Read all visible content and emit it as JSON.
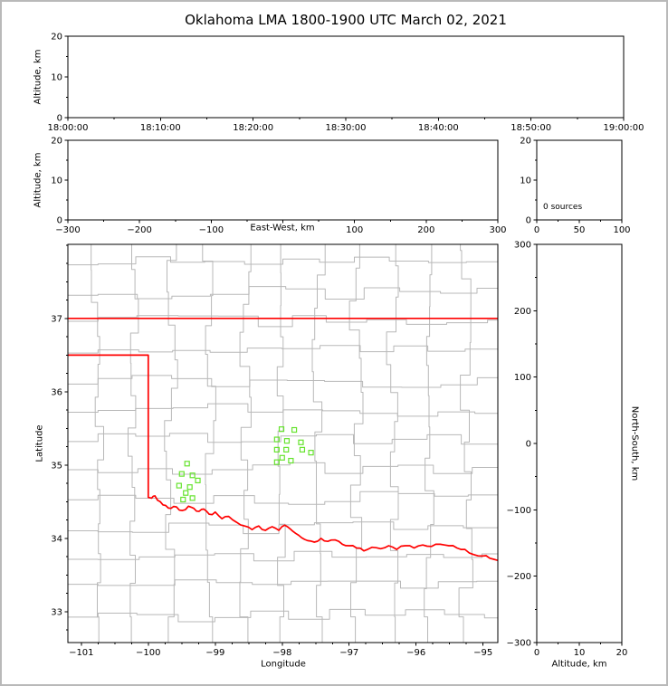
{
  "title": "Oklahoma LMA 1800-1900 UTC March 02, 2021",
  "colors": {
    "state_border": "#ff0000",
    "county_lines": "#b8b8b8",
    "source_marker": "#66e32e",
    "axis": "#000000",
    "outer_frame": "#b9b9b9"
  },
  "chart_data": [
    {
      "id": "time_height_panel",
      "type": "scatter",
      "xlabel": "",
      "ylabel": "Altitude, km",
      "xlim": [
        0,
        6
      ],
      "x_ticks": [
        0,
        1,
        2,
        3,
        4,
        5,
        6
      ],
      "x_tick_labels": [
        "18:00:00",
        "18:10:00",
        "18:20:00",
        "18:30:00",
        "18:40:00",
        "18:50:00",
        "19:00:00"
      ],
      "x_minor_ticks": [
        0.5,
        1.5,
        2.5,
        3.5,
        4.5,
        5.5
      ],
      "ylim": [
        0,
        20
      ],
      "y_ticks": [
        0,
        10,
        20
      ],
      "y_tick_labels": [
        "0",
        "10",
        "20"
      ],
      "y_minor_ticks": [
        5,
        15
      ],
      "points": []
    },
    {
      "id": "east_west_altitude_panel",
      "type": "scatter",
      "xlabel": "East-West, km",
      "ylabel": "Altitude, km",
      "xlim": [
        -300,
        300
      ],
      "x_ticks": [
        -300,
        -200,
        -100,
        0,
        100,
        200,
        300
      ],
      "x_tick_labels": [
        "−300",
        "−200",
        "−100",
        "",
        "100",
        "200",
        "300"
      ],
      "x_minor_ticks": [
        -250,
        -150,
        -50,
        50,
        150,
        250
      ],
      "ylim": [
        0,
        20
      ],
      "y_ticks": [
        0,
        10,
        20
      ],
      "y_tick_labels": [
        "0",
        "10",
        "20"
      ],
      "y_minor_ticks": [
        5,
        15
      ],
      "points": []
    },
    {
      "id": "altitude_histogram_panel",
      "type": "histogram",
      "annotation": "0 sources",
      "xlim": [
        0,
        100
      ],
      "x_ticks": [
        0,
        50,
        100
      ],
      "x_tick_labels": [
        "0",
        "50",
        "100"
      ],
      "x_minor_ticks": [
        25,
        75
      ],
      "ylim": [
        0,
        20
      ],
      "y_ticks": [
        0,
        10,
        20
      ],
      "y_tick_labels": [
        "0",
        "10",
        "20"
      ],
      "y_minor_ticks": [
        5,
        15
      ],
      "values": []
    },
    {
      "id": "plan_view_panel",
      "type": "scatter",
      "xlabel": "Longitude",
      "ylabel": "Latitude",
      "xlim": [
        -101.2,
        -94.78
      ],
      "x_ticks": [
        -101,
        -100,
        -99,
        -98,
        -97,
        -96,
        -95
      ],
      "x_tick_labels": [
        "−101",
        "−100",
        "−99",
        "−98",
        "−97",
        "−96",
        "−95"
      ],
      "x_minor_step": 0.25,
      "ylim": [
        32.58,
        38.01
      ],
      "y_ticks": [
        33,
        34,
        35,
        36,
        37
      ],
      "y_tick_labels": [
        "33",
        "34",
        "35",
        "36",
        "37"
      ],
      "y_minor_step": 0.25,
      "county_lines_color": "#b8b8b8",
      "state_border": {
        "color": "#ff0000",
        "north": [
          [
            -101.2,
            37
          ],
          [
            -94.78,
            37
          ]
        ],
        "west_and_red_river": [
          [
            -101.2,
            36.5
          ],
          [
            -100,
            36.5
          ],
          [
            -100,
            34.56
          ],
          [
            -99.95,
            34.55
          ],
          [
            -99.9,
            34.58
          ],
          [
            -99.82,
            34.5
          ],
          [
            -99.74,
            34.45
          ],
          [
            -99.66,
            34.41
          ],
          [
            -99.58,
            34.43
          ],
          [
            -99.49,
            34.38
          ],
          [
            -99.4,
            34.44
          ],
          [
            -99.32,
            34.41
          ],
          [
            -99.24,
            34.37
          ],
          [
            -99.17,
            34.4
          ],
          [
            -99.09,
            34.33
          ],
          [
            -99.0,
            34.36
          ],
          [
            -98.9,
            34.27
          ],
          [
            -98.8,
            34.3
          ],
          [
            -98.68,
            34.22
          ],
          [
            -98.56,
            34.17
          ],
          [
            -98.45,
            34.12
          ],
          [
            -98.35,
            34.17
          ],
          [
            -98.25,
            34.11
          ],
          [
            -98.15,
            34.16
          ],
          [
            -98.05,
            34.11
          ],
          [
            -97.96,
            34.18
          ],
          [
            -97.88,
            34.13
          ],
          [
            -97.8,
            34.07
          ],
          [
            -97.71,
            34.01
          ],
          [
            -97.62,
            33.97
          ],
          [
            -97.52,
            33.95
          ],
          [
            -97.42,
            34.0
          ],
          [
            -97.32,
            33.96
          ],
          [
            -97.21,
            33.98
          ],
          [
            -97.1,
            33.92
          ],
          [
            -97.0,
            33.9
          ],
          [
            -96.89,
            33.87
          ],
          [
            -96.78,
            33.83
          ],
          [
            -96.66,
            33.88
          ],
          [
            -96.53,
            33.86
          ],
          [
            -96.41,
            33.9
          ],
          [
            -96.29,
            33.85
          ],
          [
            -96.16,
            33.9
          ],
          [
            -96.03,
            33.87
          ],
          [
            -95.9,
            33.91
          ],
          [
            -95.77,
            33.89
          ],
          [
            -95.64,
            33.92
          ],
          [
            -95.51,
            33.9
          ],
          [
            -95.39,
            33.87
          ],
          [
            -95.27,
            33.85
          ],
          [
            -95.14,
            33.78
          ],
          [
            -95.01,
            33.76
          ],
          [
            -94.9,
            33.73
          ],
          [
            -94.78,
            33.7
          ]
        ]
      },
      "sources": {
        "color": "#66e32e",
        "marker": "open-square",
        "points": [
          [
            -99.42,
            35.02
          ],
          [
            -99.5,
            34.88
          ],
          [
            -99.34,
            34.86
          ],
          [
            -99.54,
            34.72
          ],
          [
            -99.38,
            34.7
          ],
          [
            -99.26,
            34.79
          ],
          [
            -99.48,
            34.53
          ],
          [
            -99.34,
            34.55
          ],
          [
            -99.44,
            34.62
          ],
          [
            -98.01,
            35.49
          ],
          [
            -97.82,
            35.48
          ],
          [
            -98.08,
            35.35
          ],
          [
            -97.93,
            35.33
          ],
          [
            -97.72,
            35.31
          ],
          [
            -98.08,
            35.21
          ],
          [
            -97.94,
            35.21
          ],
          [
            -97.7,
            35.21
          ],
          [
            -97.57,
            35.17
          ],
          [
            -98.0,
            35.1
          ],
          [
            -98.08,
            35.04
          ],
          [
            -97.87,
            35.06
          ]
        ]
      }
    },
    {
      "id": "north_south_altitude_panel",
      "type": "scatter",
      "xlabel": "Altitude, km",
      "ylabel": "North-South, km",
      "xlim": [
        0,
        20
      ],
      "x_ticks": [
        0,
        10,
        20
      ],
      "x_tick_labels": [
        "0",
        "10",
        "20"
      ],
      "x_minor_ticks": [
        5,
        15
      ],
      "ylim": [
        -300,
        300
      ],
      "y_ticks": [
        -300,
        -200,
        -100,
        0,
        100,
        200,
        300
      ],
      "y_tick_labels": [
        "−300",
        "−200",
        "−100",
        "0",
        "100",
        "200",
        "300"
      ],
      "y_minor_step": 50,
      "points": []
    }
  ]
}
